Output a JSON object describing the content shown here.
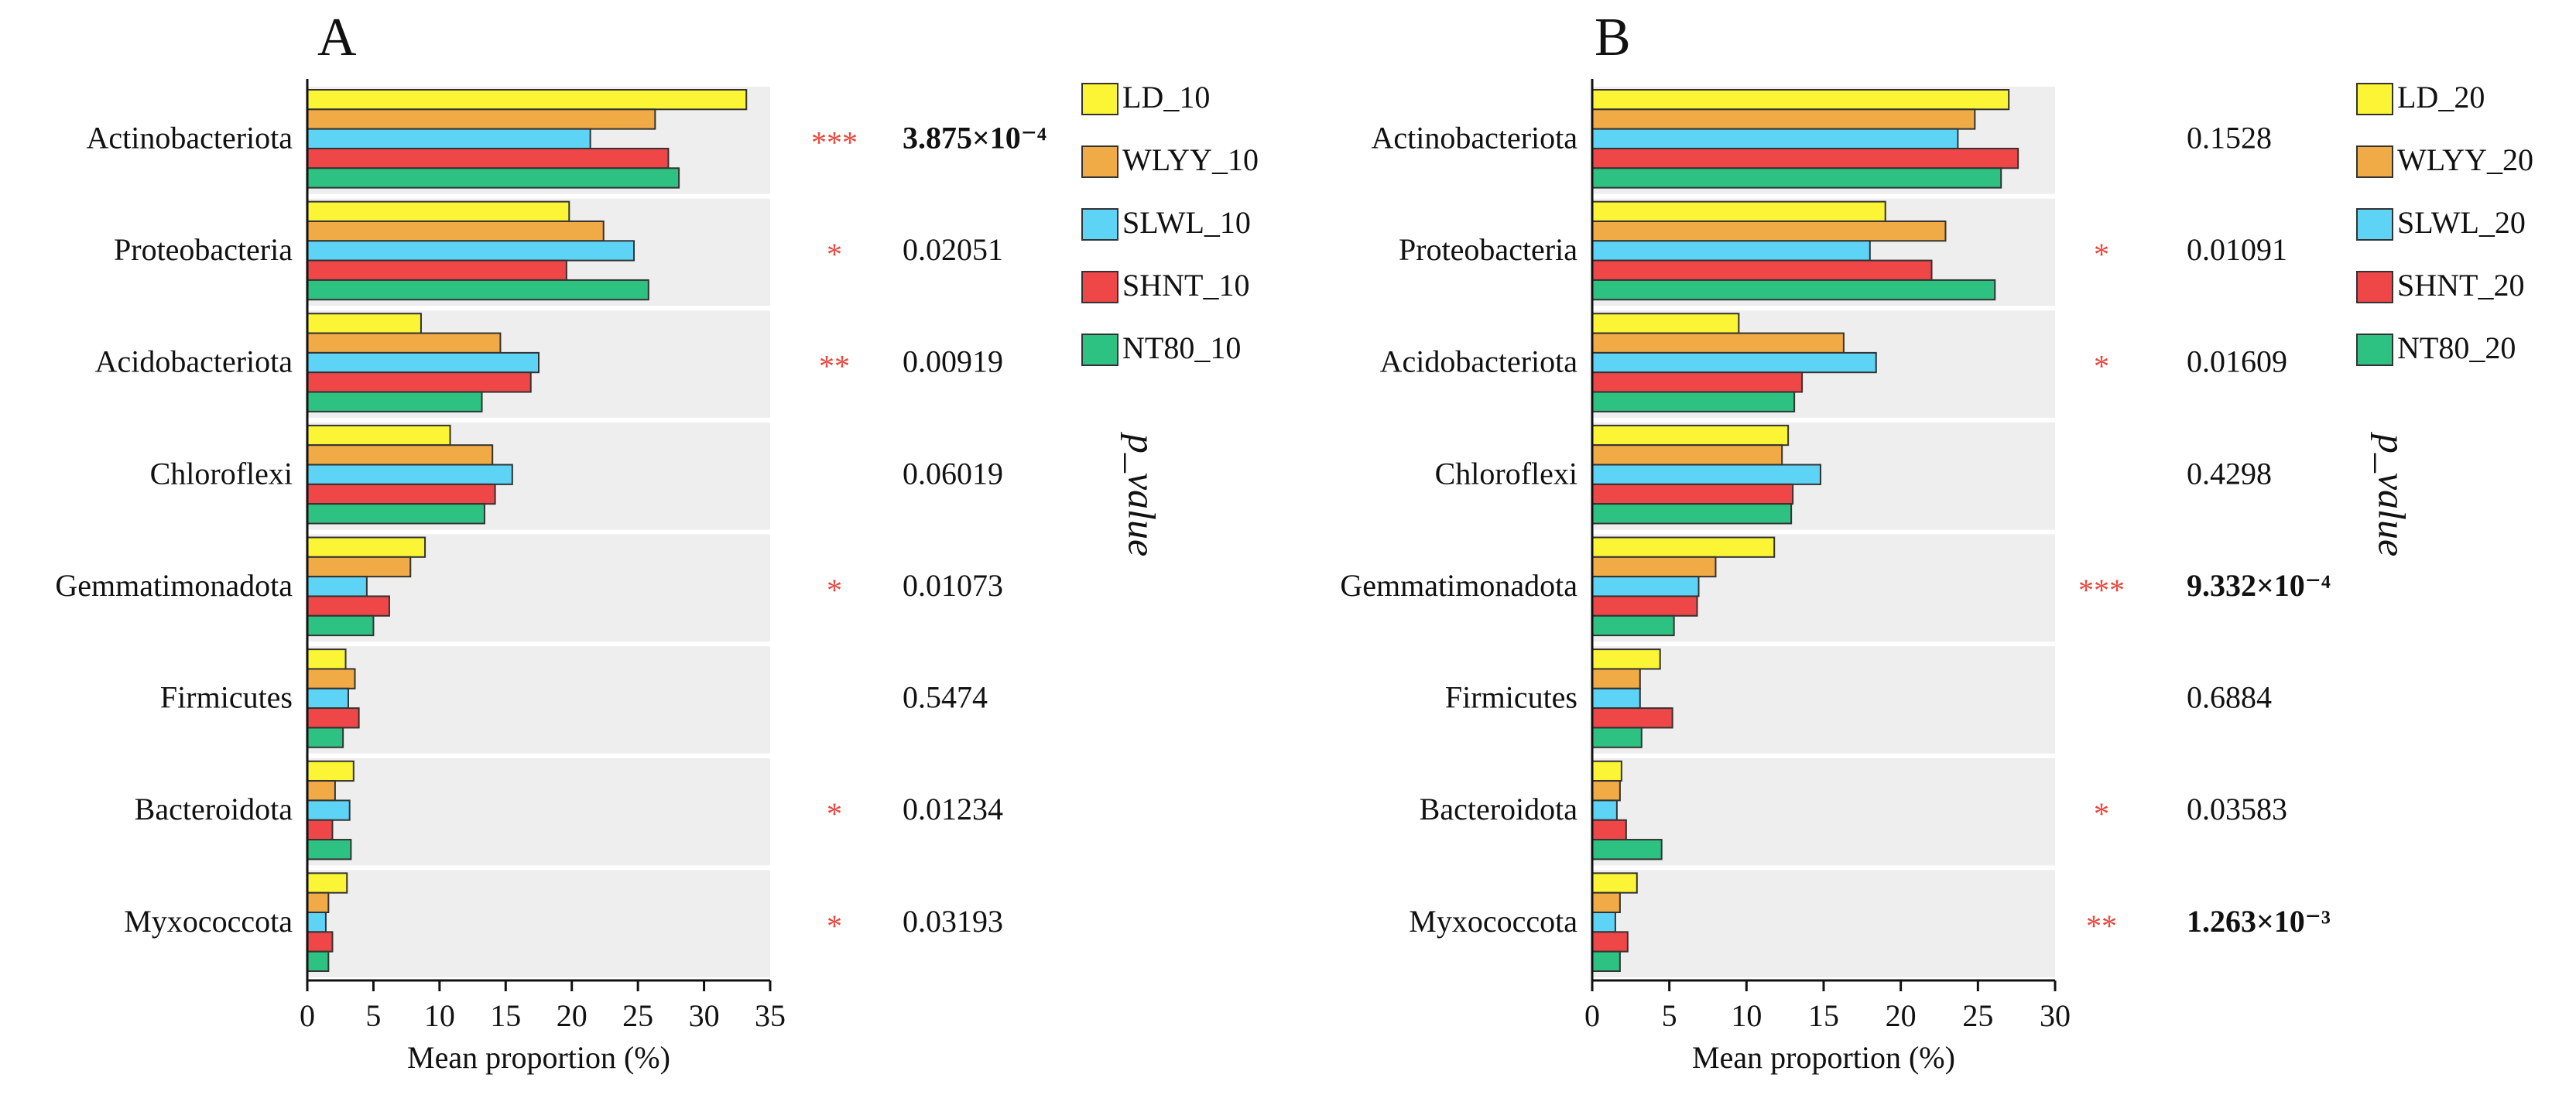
{
  "chart_data": [
    {
      "type": "hbar",
      "label": "A",
      "xlabel": "Mean proportion (%)",
      "p_label": "p_value",
      "categories": [
        "Actinobacteriota",
        "Proteobacteria",
        "Acidobacteriota",
        "Chloroflexi",
        "Gemmatimonadota",
        "Firmicutes",
        "Bacteroidota",
        "Myxococcota"
      ],
      "series": [
        {
          "name": "LD_10",
          "color": "#fcf536",
          "values": [
            33.2,
            19.8,
            8.6,
            10.8,
            8.9,
            2.9,
            3.5,
            3.0
          ]
        },
        {
          "name": "WLYY_10",
          "color": "#f0aa46",
          "values": [
            26.3,
            22.4,
            14.6,
            14.0,
            7.8,
            3.6,
            2.1,
            1.6
          ]
        },
        {
          "name": "SLWL_10",
          "color": "#5dd3f5",
          "values": [
            21.4,
            24.7,
            17.5,
            15.5,
            4.5,
            3.1,
            3.2,
            1.4
          ]
        },
        {
          "name": "SHNT_10",
          "color": "#ef4648",
          "values": [
            27.3,
            19.6,
            16.9,
            14.2,
            6.2,
            3.9,
            1.9,
            1.9
          ]
        },
        {
          "name": "NT80_10",
          "color": "#2ec282",
          "values": [
            28.1,
            25.8,
            13.2,
            13.4,
            5.0,
            2.7,
            3.3,
            1.6
          ]
        }
      ],
      "significance": [
        "***",
        "*",
        "**",
        null,
        "*",
        null,
        "*",
        "*"
      ],
      "p_values": [
        "3.875×10⁻⁴",
        "0.02051",
        "0.00919",
        "0.06019",
        "0.01073",
        "0.5474",
        "0.01234",
        "0.03193"
      ],
      "xlim": [
        0,
        35
      ],
      "xticks": [
        0,
        5,
        10,
        15,
        20,
        25,
        30,
        35
      ]
    },
    {
      "type": "hbar",
      "label": "B",
      "xlabel": "Mean proportion (%)",
      "p_label": "p_value",
      "categories": [
        "Actinobacteriota",
        "Proteobacteria",
        "Acidobacteriota",
        "Chloroflexi",
        "Gemmatimonadota",
        "Firmicutes",
        "Bacteroidota",
        "Myxococcota"
      ],
      "series": [
        {
          "name": "LD_20",
          "color": "#fcf536",
          "values": [
            27.0,
            19.0,
            9.5,
            12.7,
            11.8,
            4.4,
            1.9,
            2.9
          ]
        },
        {
          "name": "WLYY_20",
          "color": "#f0aa46",
          "values": [
            24.8,
            22.9,
            16.3,
            12.3,
            8.0,
            3.1,
            1.8,
            1.8
          ]
        },
        {
          "name": "SLWL_20",
          "color": "#5dd3f5",
          "values": [
            23.7,
            18.0,
            18.4,
            14.8,
            6.9,
            3.1,
            1.6,
            1.5
          ]
        },
        {
          "name": "SHNT_20",
          "color": "#ef4648",
          "values": [
            27.6,
            22.0,
            13.6,
            13.0,
            6.8,
            5.2,
            2.2,
            2.3
          ]
        },
        {
          "name": "NT80_20",
          "color": "#2ec282",
          "values": [
            26.5,
            26.1,
            13.1,
            12.9,
            5.3,
            3.2,
            4.5,
            1.8
          ]
        }
      ],
      "significance": [
        null,
        "*",
        "*",
        null,
        "***",
        null,
        "*",
        "**"
      ],
      "p_values": [
        "0.1528",
        "0.01091",
        "0.01609",
        "0.4298",
        "9.332×10⁻⁴",
        "0.6884",
        "0.03583",
        "1.263×10⁻³"
      ],
      "xlim": [
        0,
        30
      ],
      "xticks": [
        0,
        5,
        10,
        15,
        20,
        25,
        30
      ]
    }
  ]
}
